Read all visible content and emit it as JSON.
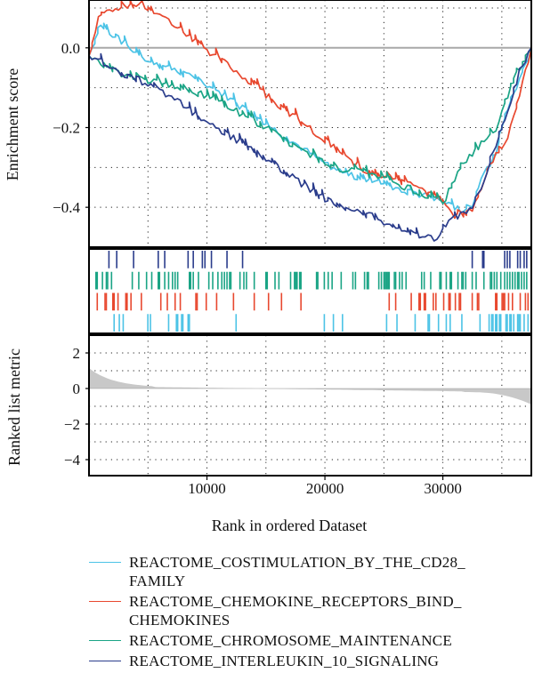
{
  "chart_data": {
    "type": "line",
    "xlabel": "Rank in ordered Dataset",
    "x_ticks": [
      10000,
      20000,
      30000
    ],
    "xlim": [
      0,
      37500
    ],
    "grid": true,
    "panels": {
      "enrichment": {
        "ylabel": "Enrichment score",
        "ylim": [
          -0.5,
          0.12
        ],
        "y_ticks": [
          0.0,
          -0.2,
          -0.4
        ],
        "y_tick_labels": [
          "0.0",
          "−0.2",
          "−0.4"
        ],
        "zero_line": true
      },
      "hits": {
        "legend_order_rows": [
          "REACTOME_INTERLEUKIN_10_SIGNALING",
          "REACTOME_CHROMOSOME_MAINTENANCE",
          "REACTOME_CHEMOKINE_RECEPTORS_BIND_CHEMOKINES",
          "REACTOME_COSTIMULATION_BY_THE_CD28_FAMILY"
        ]
      },
      "ranked": {
        "ylabel": "Ranked list metric",
        "ylim": [
          -4.9,
          3.0
        ],
        "y_ticks": [
          2,
          0,
          -2,
          -4
        ],
        "y_tick_labels": [
          "2",
          "0",
          "−2",
          "−4"
        ],
        "metric_range": [
          1.1,
          -0.9
        ],
        "fill_color": "#c8c8c8"
      }
    },
    "series": [
      {
        "name": "REACTOME_COSTIMULATION_BY_THE_CD28_\nFAMILY",
        "color": "#4cc3e6",
        "x": [
          0,
          1000,
          3500,
          5500,
          7500,
          10000,
          13000,
          16500,
          20000,
          22000,
          23500,
          26000,
          28000,
          30000,
          31500,
          32500,
          33000,
          34500,
          35500,
          36500,
          37500
        ],
        "y": [
          -0.02,
          0.055,
          0.0,
          -0.04,
          -0.06,
          -0.09,
          -0.15,
          -0.22,
          -0.29,
          -0.32,
          -0.33,
          -0.35,
          -0.37,
          -0.38,
          -0.41,
          -0.4,
          -0.35,
          -0.26,
          -0.15,
          -0.08,
          0.0
        ]
      },
      {
        "name": "REACTOME_CHEMOKINE_RECEPTORS_BIND_\nCHEMOKINES",
        "color": "#e8482f",
        "x": [
          0,
          800,
          2000,
          3000,
          4500,
          6000,
          8000,
          10000,
          13000,
          16000,
          19000,
          22000,
          23500,
          25000,
          27000,
          29000,
          31000,
          32500,
          33500,
          34500,
          35500,
          36500,
          37500
        ],
        "y": [
          -0.02,
          0.07,
          0.1,
          0.105,
          0.11,
          0.085,
          0.04,
          -0.005,
          -0.07,
          -0.14,
          -0.21,
          -0.28,
          -0.31,
          -0.32,
          -0.34,
          -0.37,
          -0.42,
          -0.41,
          -0.33,
          -0.27,
          -0.22,
          -0.12,
          0.0
        ]
      },
      {
        "name": "REACTOME_CHROMOSOME_MAINTENANCE",
        "color": "#1aa485",
        "x": [
          0,
          3000,
          6000,
          9000,
          12000,
          15000,
          18000,
          21000,
          24000,
          27000,
          28500,
          30000,
          31000,
          32000,
          33000,
          34500,
          35500,
          36500,
          37500
        ],
        "y": [
          -0.02,
          -0.07,
          -0.09,
          -0.11,
          -0.15,
          -0.2,
          -0.26,
          -0.3,
          -0.32,
          -0.35,
          -0.37,
          -0.39,
          -0.33,
          -0.28,
          -0.25,
          -0.2,
          -0.12,
          -0.05,
          0.0
        ]
      },
      {
        "name": "REACTOME_INTERLEUKIN_10_SIGNALING",
        "color": "#2b3d8c",
        "x": [
          0,
          2500,
          5000,
          7500,
          10000,
          12500,
          15000,
          17500,
          20000,
          22000,
          24000,
          26000,
          28000,
          29500,
          30500,
          31500,
          32500,
          33500,
          34500,
          35500,
          36500,
          37500
        ],
        "y": [
          -0.02,
          -0.06,
          -0.09,
          -0.13,
          -0.19,
          -0.23,
          -0.28,
          -0.33,
          -0.38,
          -0.41,
          -0.42,
          -0.45,
          -0.47,
          -0.48,
          -0.43,
          -0.42,
          -0.4,
          -0.33,
          -0.25,
          -0.16,
          -0.06,
          0.0
        ]
      }
    ]
  }
}
